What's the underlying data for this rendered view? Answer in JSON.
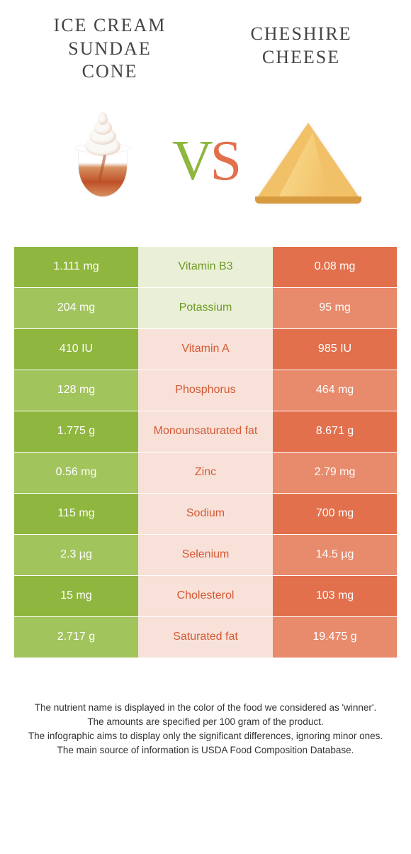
{
  "foods": {
    "left": {
      "name_l1": "Ice cream",
      "name_l2": "sundae",
      "name_l3": "cone"
    },
    "right": {
      "name_l1": "Cheshire",
      "name_l2": "cheese"
    }
  },
  "vs": {
    "v": "V",
    "s": "S"
  },
  "colors": {
    "left_main": "#8fb63e",
    "left_light": "#a2c45d",
    "left_text": "#6f9a24",
    "left_mid_bg": "#eaf0d8",
    "right_main": "#e2704c",
    "right_light": "#e88a6c",
    "right_text": "#d45a36",
    "right_mid_bg": "#f8e1d8",
    "background": "#ffffff"
  },
  "rows": [
    {
      "nutrient": "Vitamin B3",
      "left": "1.111 mg",
      "right": "0.08 mg",
      "winner": "left"
    },
    {
      "nutrient": "Potassium",
      "left": "204 mg",
      "right": "95 mg",
      "winner": "left"
    },
    {
      "nutrient": "Vitamin A",
      "left": "410 IU",
      "right": "985 IU",
      "winner": "right"
    },
    {
      "nutrient": "Phosphorus",
      "left": "128 mg",
      "right": "464 mg",
      "winner": "right"
    },
    {
      "nutrient": "Monounsaturated fat",
      "left": "1.775 g",
      "right": "8.671 g",
      "winner": "right"
    },
    {
      "nutrient": "Zinc",
      "left": "0.56 mg",
      "right": "2.79 mg",
      "winner": "right"
    },
    {
      "nutrient": "Sodium",
      "left": "115 mg",
      "right": "700 mg",
      "winner": "right"
    },
    {
      "nutrient": "Selenium",
      "left": "2.3 µg",
      "right": "14.5 µg",
      "winner": "right"
    },
    {
      "nutrient": "Cholesterol",
      "left": "15 mg",
      "right": "103 mg",
      "winner": "right"
    },
    {
      "nutrient": "Saturated fat",
      "left": "2.717 g",
      "right": "19.475 g",
      "winner": "right"
    }
  ],
  "footer": {
    "l1": "The nutrient name is displayed in the color of the food we considered as 'winner'.",
    "l2": "The amounts are specified per 100 gram of the product.",
    "l3": "The infographic aims to display only the significant differences, ignoring minor ones.",
    "l4": "The main source of information is USDA Food Composition Database."
  }
}
